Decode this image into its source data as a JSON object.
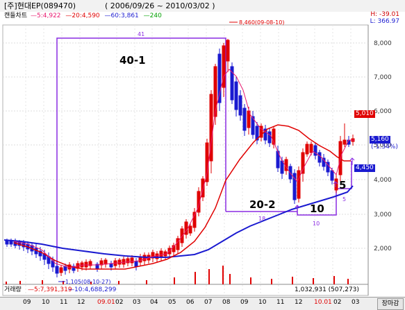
{
  "title": {
    "stock_name": "[주]현대EP(089470)",
    "date_range": "( 2006/09/26 ~ 2010/03/02 )"
  },
  "legend": {
    "chart_type": "캔들차트",
    "ma5": "5:4,922",
    "ma20": "20:4,590",
    "ma60": "60:3,861",
    "ma240": "240",
    "colors": {
      "ma5": "#e8186f",
      "ma20": "#e00000",
      "ma60": "#1a1ad0",
      "ma240": "#00a000"
    }
  },
  "header_right": {
    "high_change": "H: -39.01",
    "low_price": "L: 366.97"
  },
  "price_axis": [
    "8,000",
    "7,000",
    "6,000",
    "5,000",
    "4,000",
    "3,000",
    "2,000"
  ],
  "badges": {
    "upper": "5,010",
    "current": "5,160",
    "current_change": "(-1.34%)",
    "lower": "4,450"
  },
  "annotations": {
    "peak": "8,460(09-08-10)",
    "trough": "1,105(08-10-27)",
    "label_40_1": "40-1",
    "label_20_2": "20-2",
    "label_10": "10",
    "label_5": "5",
    "count_41": "41",
    "count_18": "18",
    "count_10": "10",
    "count_5": "5"
  },
  "volume": {
    "label": "거래량",
    "ma5": "5:7,391,319",
    "ma10": "10:4,688,299",
    "right": "1,032,931 (507,273)"
  },
  "x_axis": {
    "labels": [
      "09",
      "10",
      "11",
      "12",
      "09.01",
      "02",
      "03",
      "04",
      "05",
      "06",
      "07",
      "08",
      "09",
      "10",
      "11",
      "12",
      "10.01",
      "02",
      "03"
    ],
    "button": "장마감"
  }
}
